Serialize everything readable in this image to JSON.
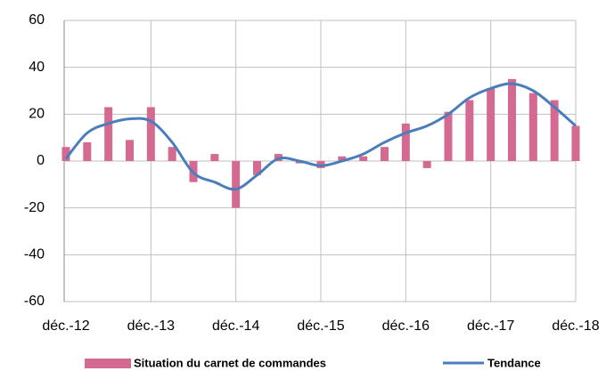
{
  "chart_data": {
    "type": "bar",
    "categories": [
      "déc.-12",
      null,
      null,
      null,
      "déc.-13",
      null,
      null,
      null,
      "déc.-14",
      null,
      null,
      null,
      "déc.-15",
      null,
      null,
      null,
      "déc.-16",
      null,
      null,
      null,
      "déc.-17",
      null,
      null,
      null,
      "déc.-18"
    ],
    "series": [
      {
        "name": "Situation du carnet de commandes",
        "type": "bar",
        "color": "#d46a92",
        "values": [
          6,
          8,
          23,
          9,
          23,
          6,
          -9,
          3,
          -20,
          -6,
          3,
          -1,
          -3,
          2,
          2,
          6,
          16,
          -3,
          21,
          26,
          31,
          35,
          29,
          26,
          15
        ]
      },
      {
        "name": "Tendance",
        "type": "line",
        "color": "#4a7ebb",
        "values": [
          1,
          12,
          16,
          18,
          17,
          8,
          -5,
          -9,
          -12,
          -6,
          1,
          0,
          -2,
          0,
          3,
          8,
          12,
          15,
          20,
          27,
          31,
          33,
          30,
          23,
          15
        ]
      }
    ],
    "ylim": [
      -60,
      60
    ],
    "yticks": [
      -60,
      -40,
      -20,
      0,
      20,
      40,
      60
    ],
    "grid": true,
    "legend": "bottom"
  }
}
